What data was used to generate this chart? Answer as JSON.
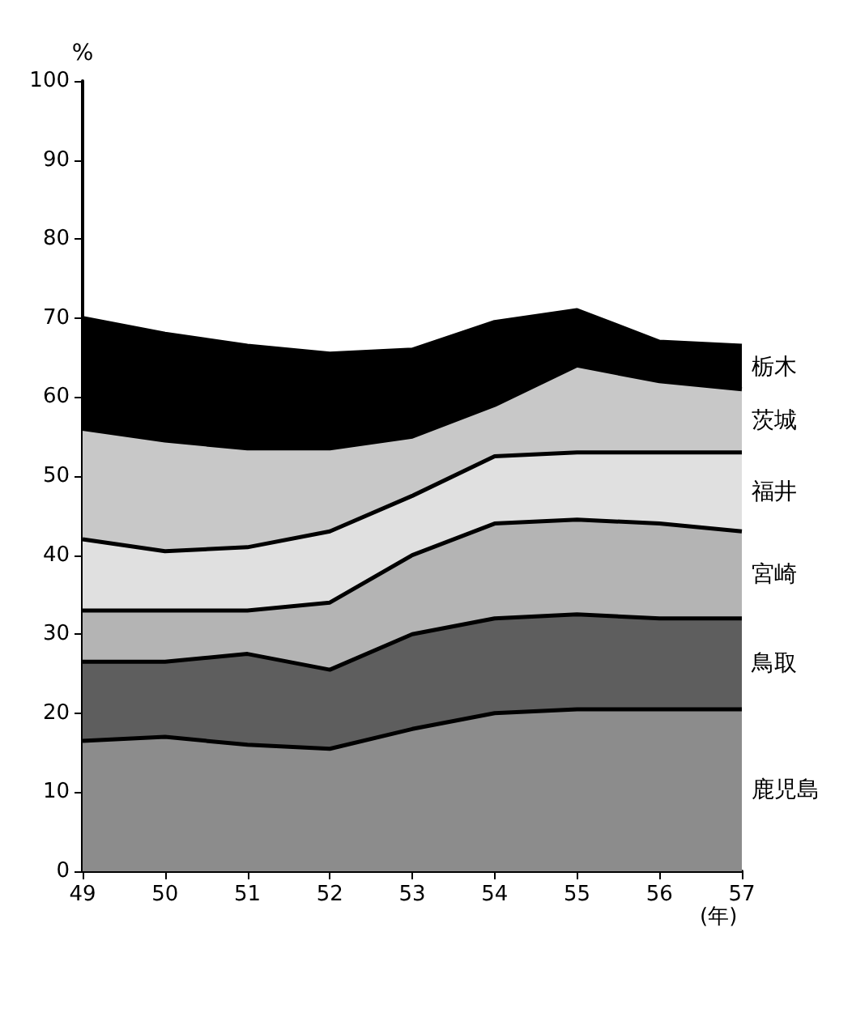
{
  "chart_data": {
    "type": "area",
    "stacked": true,
    "ylabel": "%",
    "xlabel": "(年)",
    "x": [
      49,
      50,
      51,
      52,
      53,
      54,
      55,
      56,
      57
    ],
    "xlim": [
      49,
      57
    ],
    "xticks": [
      49,
      50,
      51,
      52,
      53,
      54,
      55,
      56,
      57
    ],
    "ylim": [
      0,
      100
    ],
    "yticks": [
      0,
      10,
      20,
      30,
      40,
      50,
      60,
      70,
      80,
      90,
      100
    ],
    "grid": false,
    "legend": false,
    "marker": "none",
    "line_style": "solid",
    "series": [
      {
        "name": "鹿児島",
        "color": "#8c8c8c",
        "values": [
          16.5,
          17,
          16,
          15.5,
          18,
          20,
          20.5,
          20.5,
          20.5
        ]
      },
      {
        "name": "鳥取",
        "color": "#5e5e5e",
        "values": [
          10,
          9.5,
          11.5,
          10,
          12,
          12,
          12,
          11.5,
          11.5
        ]
      },
      {
        "name": "宮崎",
        "color": "#b4b4b4",
        "values": [
          6.5,
          6.5,
          5.5,
          8.5,
          10,
          12,
          12,
          12,
          11
        ]
      },
      {
        "name": "福井",
        "color": "#e0e0e0",
        "values": [
          9,
          7.5,
          8,
          9,
          7.5,
          8.5,
          8.5,
          9,
          10
        ]
      },
      {
        "name": "茨城",
        "color": "#c8c8c8",
        "values": [
          14,
          14,
          12.5,
          10.5,
          7.5,
          6.5,
          11,
          9,
          8
        ]
      },
      {
        "name": "栃木",
        "color": "#000000",
        "values": [
          14,
          13.5,
          13,
          12,
          11,
          10.5,
          7,
          5,
          5.5
        ]
      }
    ]
  }
}
